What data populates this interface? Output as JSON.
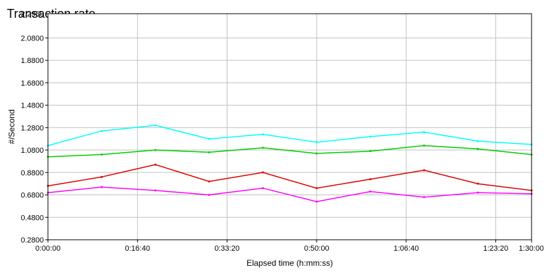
{
  "chart_data": {
    "type": "line",
    "title": "Transaction rate",
    "xlabel": "Elapsed time (h:mm:ss)",
    "ylabel": "#/Second",
    "xlim": [
      0,
      5400
    ],
    "ylim": [
      0.28,
      2.296
    ],
    "y_ticks": [
      0.28,
      0.48,
      0.68,
      0.88,
      1.08,
      1.28,
      1.48,
      1.68,
      1.88,
      2.08,
      2.296
    ],
    "y_tick_labels": [
      "0.2800",
      "0.4800",
      "0.6800",
      "0.8800",
      "1.0800",
      "1.2800",
      "1.4800",
      "1.6800",
      "1.8800",
      "2.0800",
      "2.2960"
    ],
    "x_ticks": [
      0,
      1000,
      2000,
      3000,
      4000,
      5000,
      5400
    ],
    "x_tick_labels": [
      "0:00:00",
      "0:16:40",
      "0:33:20",
      "0:50:00",
      "1:06:40",
      "1:23:20",
      "1:30:00"
    ],
    "grid": true,
    "series": [
      {
        "color": "#00cc00",
        "x": [
          0,
          600,
          1200,
          1800,
          2400,
          3000,
          3600,
          4200,
          4800,
          5400
        ],
        "values": [
          1.02,
          1.04,
          1.08,
          1.06,
          1.1,
          1.05,
          1.07,
          1.12,
          1.09,
          1.04
        ]
      },
      {
        "color": "#dd0000",
        "x": [
          0,
          600,
          1200,
          1800,
          2400,
          3000,
          3600,
          4200,
          4800,
          5400
        ],
        "values": [
          0.76,
          0.84,
          0.95,
          0.8,
          0.88,
          0.74,
          0.82,
          0.9,
          0.78,
          0.72
        ]
      },
      {
        "color": "#ff00ff",
        "x": [
          0,
          600,
          1200,
          1800,
          2400,
          3000,
          3600,
          4200,
          4800,
          5400
        ],
        "values": [
          0.7,
          0.75,
          0.72,
          0.68,
          0.74,
          0.62,
          0.71,
          0.66,
          0.7,
          0.69
        ]
      },
      {
        "color": "#00ffff",
        "x": [
          0,
          600,
          1200,
          1800,
          2400,
          3000,
          3600,
          4200,
          4800,
          5400
        ],
        "values": [
          1.12,
          1.25,
          1.3,
          1.18,
          1.22,
          1.15,
          1.2,
          1.24,
          1.16,
          1.13
        ]
      }
    ]
  }
}
